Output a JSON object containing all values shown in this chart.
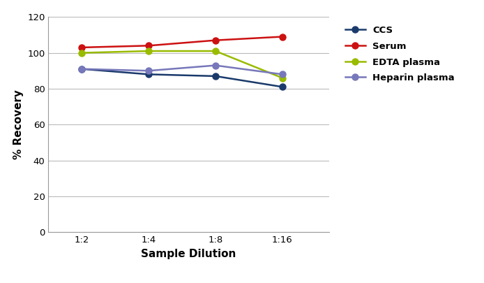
{
  "x_labels": [
    "1:2",
    "1:4",
    "1:8",
    "1:16"
  ],
  "x_values": [
    0,
    1,
    2,
    3
  ],
  "series": [
    {
      "name": "CCS",
      "color": "#1a3a6b",
      "values": [
        91,
        88,
        87,
        81
      ],
      "marker": "o",
      "linewidth": 1.8
    },
    {
      "name": "Serum",
      "color": "#cc1111",
      "values": [
        103,
        104,
        107,
        109
      ],
      "marker": "o",
      "linewidth": 1.8
    },
    {
      "name": "EDTA plasma",
      "color": "#99bb00",
      "values": [
        100,
        101,
        101,
        86
      ],
      "marker": "o",
      "linewidth": 1.8
    },
    {
      "name": "Heparin plasma",
      "color": "#7777bb",
      "values": [
        91,
        90,
        93,
        88
      ],
      "marker": "o",
      "linewidth": 1.8
    }
  ],
  "xlabel": "Sample Dilution",
  "ylabel": "% Recovery",
  "ylim": [
    0,
    120
  ],
  "yticks": [
    0,
    20,
    40,
    60,
    80,
    100,
    120
  ],
  "background_color": "#ffffff",
  "grid_color": "#bbbbbb",
  "legend_fontsize": 9.5,
  "axis_label_fontsize": 11,
  "tick_fontsize": 9.5,
  "marker_size": 6.5,
  "figsize": [
    6.94,
    4.05
  ],
  "dpi": 100
}
